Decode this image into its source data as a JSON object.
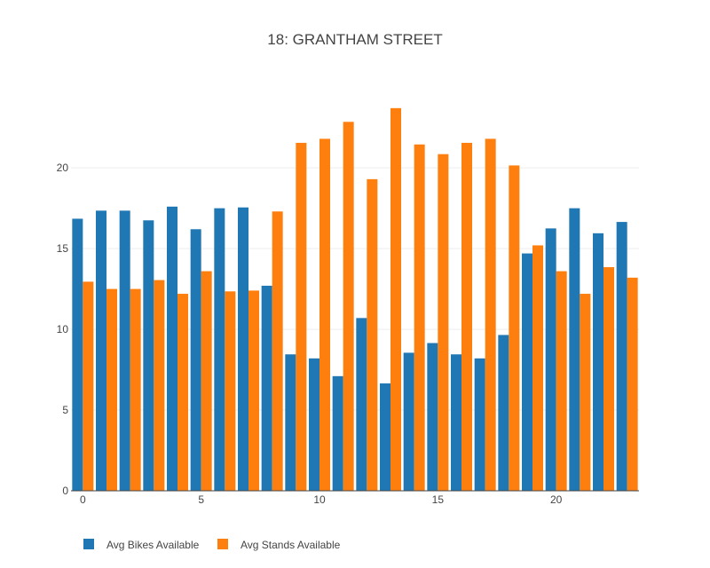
{
  "chart_data": {
    "type": "bar",
    "title": "18: GRANTHAM STREET",
    "xlabel": "",
    "ylabel": "",
    "x": [
      0,
      1,
      2,
      3,
      4,
      5,
      6,
      7,
      8,
      9,
      10,
      11,
      12,
      13,
      14,
      15,
      16,
      17,
      18,
      19,
      20,
      21,
      22,
      23
    ],
    "x_ticks": [
      0,
      5,
      10,
      15,
      20
    ],
    "y_ticks": [
      0,
      5,
      10,
      15,
      20
    ],
    "xlim": [
      -0.5,
      23.5
    ],
    "ylim": [
      0,
      24.9
    ],
    "grid": "horizontal",
    "legend_position": "bottom-left",
    "series": [
      {
        "name": "Avg Bikes Available",
        "color": "#1f77b4",
        "values": [
          16.85,
          17.35,
          17.35,
          16.75,
          17.6,
          16.2,
          17.5,
          17.55,
          12.7,
          8.45,
          8.2,
          7.1,
          10.7,
          6.65,
          8.55,
          9.15,
          8.45,
          8.2,
          9.65,
          14.7,
          16.25,
          17.5,
          15.95,
          16.65
        ]
      },
      {
        "name": "Avg Stands Available",
        "color": "#ff7f0e",
        "values": [
          12.95,
          12.5,
          12.5,
          13.05,
          12.2,
          13.6,
          12.35,
          12.4,
          17.3,
          21.55,
          21.8,
          22.85,
          19.3,
          23.7,
          21.45,
          20.85,
          21.55,
          21.8,
          20.15,
          15.2,
          13.6,
          12.2,
          13.85,
          13.2
        ]
      }
    ]
  }
}
